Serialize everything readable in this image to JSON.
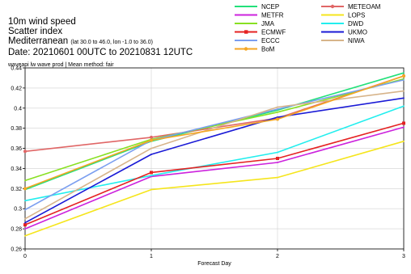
{
  "title": {
    "line1": "10m wind speed",
    "line2": "Scatter index",
    "region": "Mediterranean",
    "region_box": "(lat  30.0 to 46.0, lon  -1.0 to 36.0)",
    "date": "Date: 20210601 00UTC to 20210831 12UTC"
  },
  "subtitle": "waveapi lw wave prod | Mean method: fair",
  "chart_data": {
    "type": "line",
    "x": [
      0,
      1,
      2,
      3
    ],
    "xticks": [
      "0",
      "1",
      "2",
      "3"
    ],
    "xlabel": "Forecast Day",
    "ylabel": "",
    "ylim": [
      0.26,
      0.44
    ],
    "yticks": [
      "0.26",
      "0.28",
      "0.3",
      "0.32",
      "0.34",
      "0.36",
      "0.38",
      "0.4",
      "0.42",
      "0.44"
    ],
    "grid": true,
    "legend_position": "top-right",
    "series": [
      {
        "name": "NCEP",
        "color": "#22e07a",
        "marker": "none",
        "values": [
          0.319,
          0.367,
          0.398,
          0.435
        ]
      },
      {
        "name": "METEOAM",
        "color": "#e06666",
        "marker": "circle",
        "values": [
          0.357,
          0.371,
          0.39,
          0.432
        ]
      },
      {
        "name": "METFR",
        "color": "#cc22dd",
        "marker": "none",
        "values": [
          0.28,
          0.332,
          0.346,
          0.381
        ]
      },
      {
        "name": "LOPS",
        "color": "#f5e51c",
        "marker": "none",
        "values": [
          0.273,
          0.319,
          0.331,
          0.367
        ]
      },
      {
        "name": "JMA",
        "color": "#88e022",
        "marker": "none",
        "values": [
          0.328,
          0.369,
          0.396,
          0.429
        ]
      },
      {
        "name": "DWD",
        "color": "#22eeee",
        "marker": "none",
        "values": [
          0.308,
          0.333,
          0.356,
          0.402
        ]
      },
      {
        "name": "ECMWF",
        "color": "#e52222",
        "marker": "square",
        "values": [
          0.284,
          0.336,
          0.35,
          0.385
        ]
      },
      {
        "name": "UKMO",
        "color": "#1a1ad6",
        "marker": "none",
        "values": [
          0.286,
          0.354,
          0.391,
          0.41
        ]
      },
      {
        "name": "ECCC",
        "color": "#7a9ef0",
        "marker": "none",
        "values": [
          0.299,
          0.368,
          0.399,
          0.428
        ]
      },
      {
        "name": "NIWA",
        "color": "#d7b48a",
        "marker": "none",
        "values": [
          0.29,
          0.36,
          0.401,
          0.417
        ]
      },
      {
        "name": "BoM",
        "color": "#f5a623",
        "marker": "circle",
        "values": [
          0.32,
          0.368,
          0.389,
          0.432
        ]
      }
    ]
  }
}
